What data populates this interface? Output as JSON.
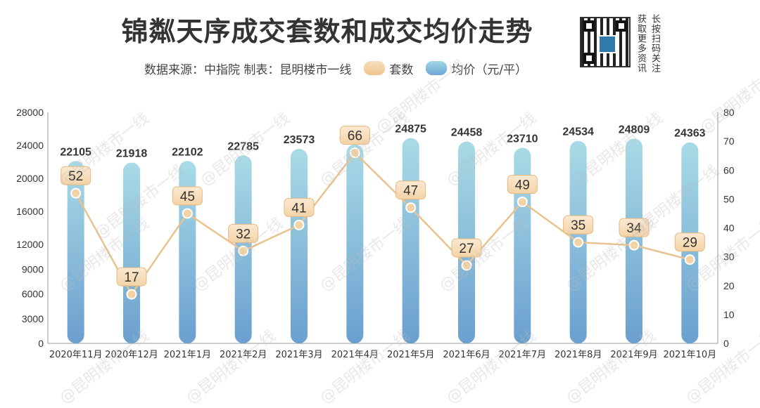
{
  "header": {
    "title": "锦粼天序成交套数和成交均价走势",
    "source": "数据来源：中指院 制表：昆明楼市一线",
    "legend_count": "套数",
    "legend_price": "均价（元/平）",
    "qr_text_1": "获取更多资讯",
    "qr_text_2": "长按扫码关注",
    "watermark": "@昆明楼市一线"
  },
  "colors": {
    "bar_top": "#a8dbe6",
    "bar_bottom": "#6a9fcf",
    "line": "#e9c28d",
    "label_bg": "#f3d3a6",
    "axis_text": "#333333"
  },
  "chart_data": {
    "type": "bar+line",
    "title": "锦粼天序成交套数和成交均价走势",
    "categories": [
      "2020年11月",
      "2020年12月",
      "2021年1月",
      "2021年2月",
      "2021年3月",
      "2021年4月",
      "2021年5月",
      "2021年6月",
      "2021年7月",
      "2021年8月",
      "2021年9月",
      "2021年10月"
    ],
    "series": [
      {
        "name": "均价（元/平）",
        "type": "bar",
        "axis": "left",
        "values": [
          22105,
          21918,
          22102,
          22785,
          23573,
          24121,
          24875,
          24458,
          23710,
          24534,
          24809,
          24363
        ]
      },
      {
        "name": "套数",
        "type": "line",
        "axis": "right",
        "values": [
          52,
          17,
          45,
          32,
          41,
          66,
          47,
          27,
          49,
          35,
          34,
          29
        ]
      }
    ],
    "y_left": {
      "min": 0,
      "max": 28000,
      "ticks": [
        0,
        3000,
        6000,
        9000,
        12000,
        16000,
        20000,
        24000,
        28000
      ]
    },
    "y_right": {
      "min": 0,
      "max": 80,
      "ticks": [
        0,
        10,
        20,
        30,
        40,
        50,
        60,
        70,
        80
      ]
    },
    "grid": false,
    "legend": "top"
  }
}
